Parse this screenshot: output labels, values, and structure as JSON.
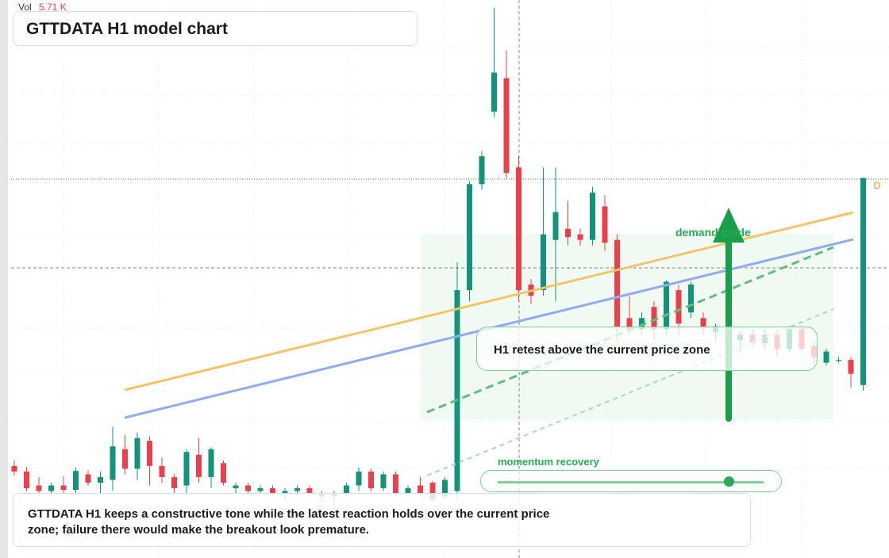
{
  "chart_data": {
    "type": "candlestick",
    "title": "GTTDATA H1 model chart",
    "volume_label": "Vol",
    "volume_value": "5.71 K",
    "marker": "D",
    "annotations": [
      "demand guide",
      "H1 retest above the current price zone",
      "momentum recovery"
    ],
    "description": "GTTDATA H1 keeps a constructive tone while the latest reaction holds over the current price zone; failure there would make the breakout look premature.",
    "up_color": "#12937a",
    "down_color": "#e8404c",
    "ylim": [
      0,
      100
    ],
    "open": [
      16.5,
      15.5,
      13,
      12,
      13,
      12.2,
      15,
      13.5,
      14,
      19.5,
      16,
      21,
      16.5,
      14.5,
      13,
      18.5,
      14.5,
      17,
      12.5,
      13,
      12,
      12.5,
      11.5,
      12,
      12.5,
      11.5,
      11,
      11.5,
      13,
      15.5,
      12.5,
      15,
      11.5,
      13,
      13.5,
      11,
      12,
      48,
      67,
      80,
      86,
      70,
      49,
      48,
      57,
      59,
      58,
      57,
      63,
      57,
      43,
      41,
      45,
      41,
      48,
      44,
      43,
      40.5,
      41,
      39,
      40,
      38.5,
      40,
      37.5,
      41,
      38,
      35,
      35.5,
      35.5,
      31
    ],
    "high": [
      17.5,
      16.3,
      14.5,
      13.5,
      14.6,
      16.2,
      15.7,
      15.5,
      23.5,
      22,
      22.5,
      21.8,
      18,
      15,
      19.5,
      21.5,
      19.8,
      17.5,
      13.5,
      13.5,
      13,
      13,
      12.5,
      13,
      13,
      12,
      12,
      13.5,
      16.2,
      16,
      15.5,
      15.5,
      13,
      14.5,
      13.8,
      14.5,
      53,
      67.5,
      73,
      98.6,
      91,
      72,
      50,
      70,
      70,
      64,
      59,
      66.5,
      65,
      58,
      47,
      44,
      46,
      49.8,
      49,
      49.5,
      44,
      42,
      41.5,
      40.5,
      41,
      41,
      41,
      41.5,
      41.5,
      39,
      37.5,
      36,
      36,
      68.2
    ],
    "low": [
      14.8,
      12,
      11,
      11,
      11.5,
      11,
      13,
      11.5,
      12,
      15,
      14,
      13,
      13.5,
      11.5,
      11.5,
      13.5,
      12.5,
      13,
      11.5,
      11,
      11.5,
      11,
      10.5,
      11,
      11,
      10,
      7,
      11,
      12,
      12,
      12,
      11,
      11,
      11,
      10,
      10.5,
      10,
      46,
      66,
      79,
      68,
      46,
      45.5,
      47,
      46,
      56,
      56,
      56,
      55,
      39,
      40,
      40,
      39,
      40,
      40,
      43,
      40,
      39,
      37,
      37,
      38,
      37.5,
      36,
      37,
      37,
      35,
      34.5,
      35,
      30.5,
      30
    ],
    "close": [
      15.5,
      12.5,
      12,
      13,
      12.2,
      15.6,
      13.5,
      14.5,
      20,
      16,
      21.5,
      16.5,
      14.5,
      12.5,
      19,
      14.5,
      19.5,
      13.5,
      13,
      12,
      12.5,
      11.5,
      12,
      12.5,
      11.5,
      11,
      11.5,
      13,
      15.5,
      12.5,
      15,
      11.5,
      12.5,
      11.5,
      10.5,
      14,
      48,
      67,
      72,
      87,
      69,
      48,
      47,
      58,
      62,
      57.5,
      57,
      65.5,
      56.5,
      41.5,
      41,
      43,
      41,
      49.5,
      42,
      49,
      41.5,
      41.5,
      39,
      40,
      38.5,
      40,
      37.5,
      41,
      37.5,
      36,
      37,
      35.5,
      33,
      68.1
    ]
  }
}
